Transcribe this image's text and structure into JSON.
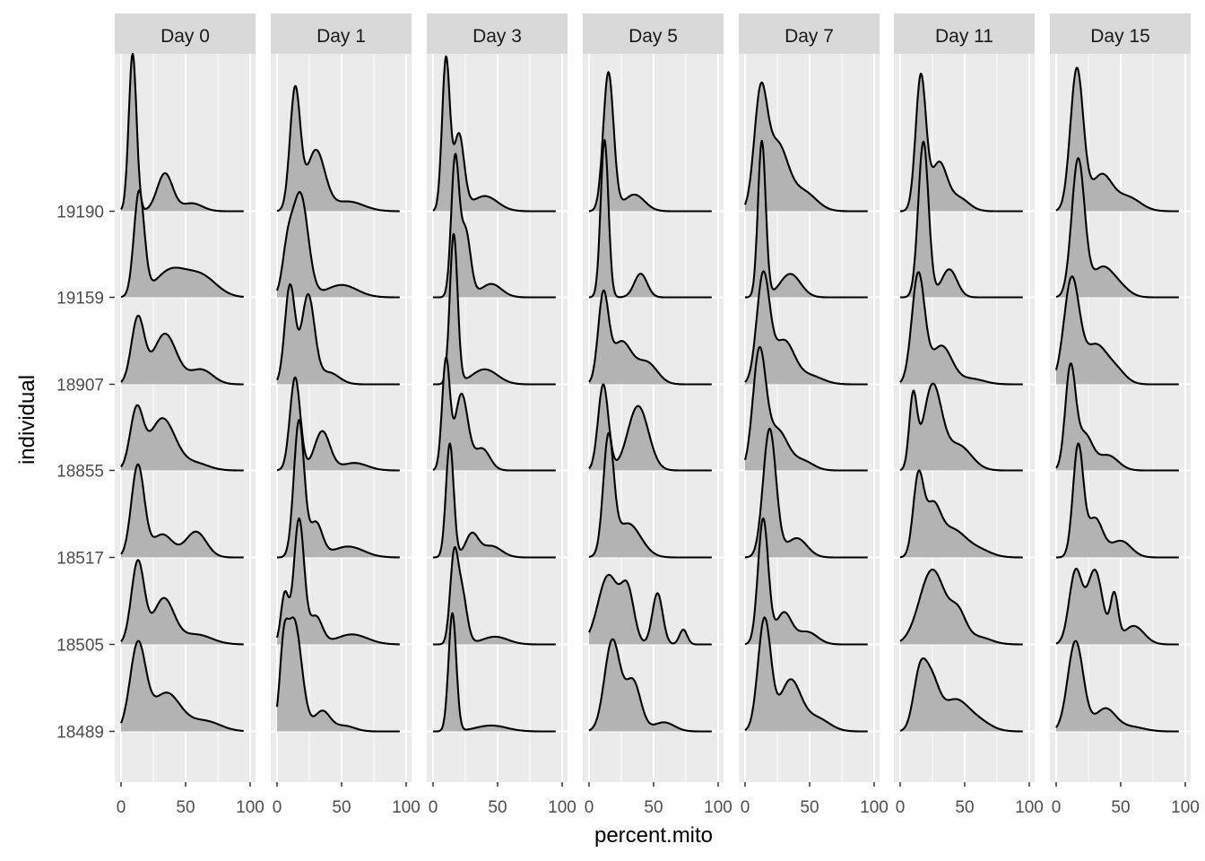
{
  "chart_data": {
    "type": "ridgeline",
    "xlabel": "percent.mito",
    "ylabel": "individual",
    "xlim": [
      0,
      100
    ],
    "x_ticks": [
      0,
      50,
      100
    ],
    "x_tick_labels": [
      "0",
      "50",
      "100"
    ],
    "fill_color": "#b3b3b3",
    "line_color": "#000000",
    "panel_background": "#ebebeb",
    "strip_background": "#d9d9d9",
    "grid": true,
    "panels": [
      "Day 0",
      "Day 1",
      "Day 3",
      "Day 5",
      "Day 7",
      "Day 11",
      "Day 15"
    ],
    "individuals": [
      "18489",
      "18505",
      "18517",
      "18855",
      "18907",
      "19159",
      "19190"
    ],
    "ridges": [
      [
        {
          "peaks": [
            [
              13,
              6,
              1.0
            ],
            [
              35,
              11,
              0.45
            ],
            [
              65,
              12,
              0.12
            ]
          ],
          "height": 1.04
        },
        {
          "peaks": [
            [
              13,
              5,
              1.0
            ],
            [
              33,
              8,
              0.55
            ],
            [
              58,
              12,
              0.12
            ]
          ],
          "height": 0.97
        },
        {
          "peaks": [
            [
              13,
              5,
              1.0
            ],
            [
              32,
              8,
              0.25
            ],
            [
              58,
              8,
              0.28
            ]
          ],
          "height": 1.07
        },
        {
          "peaks": [
            [
              12,
              5,
              1.0
            ],
            [
              32,
              10,
              0.9
            ],
            [
              58,
              10,
              0.12
            ]
          ],
          "height": 0.75
        },
        {
          "peaks": [
            [
              13,
              5,
              0.8
            ],
            [
              34,
              9,
              0.62
            ],
            [
              62,
              9,
              0.18
            ]
          ],
          "height": 0.79
        },
        {
          "peaks": [
            [
              14,
              4,
              1.0
            ],
            [
              38,
              12,
              0.25
            ],
            [
              62,
              12,
              0.2
            ]
          ],
          "height": 1.23
        },
        {
          "peaks": [
            [
              9,
              3,
              1.0
            ],
            [
              34,
              6,
              0.24
            ],
            [
              55,
              8,
              0.05
            ]
          ],
          "height": 1.81
        }
      ],
      [
        {
          "peaks": [
            [
              5,
              3,
              0.5
            ],
            [
              13,
              6,
              1.0
            ],
            [
              35,
              6,
              0.18
            ],
            [
              52,
              8,
              0.05
            ]
          ],
          "height": 1.31
        },
        {
          "peaks": [
            [
              6,
              3,
              0.4
            ],
            [
              17,
              4,
              1.0
            ],
            [
              30,
              5,
              0.22
            ],
            [
              58,
              12,
              0.08
            ]
          ],
          "height": 1.45
        },
        {
          "peaks": [
            [
              17,
              4,
              1.0
            ],
            [
              30,
              5,
              0.25
            ],
            [
              55,
              12,
              0.08
            ]
          ],
          "height": 1.58
        },
        {
          "peaks": [
            [
              14,
              4,
              1.0
            ],
            [
              35,
              6,
              0.42
            ],
            [
              60,
              10,
              0.08
            ]
          ],
          "height": 1.07
        },
        {
          "peaks": [
            [
              10,
              4,
              1.0
            ],
            [
              24,
              5,
              0.9
            ],
            [
              40,
              8,
              0.12
            ]
          ],
          "height": 1.15
        },
        {
          "peaks": [
            [
              8,
              4,
              0.4
            ],
            [
              18,
              6,
              1.0
            ],
            [
              50,
              12,
              0.12
            ]
          ],
          "height": 1.21
        },
        {
          "peaks": [
            [
              14,
              4,
              1.0
            ],
            [
              30,
              7,
              0.5
            ],
            [
              55,
              12,
              0.08
            ]
          ],
          "height": 1.44
        }
      ],
      [
        {
          "peaks": [
            [
              15,
              3,
              1.0
            ],
            [
              45,
              12,
              0.05
            ]
          ],
          "height": 1.36
        },
        {
          "peaks": [
            [
              16,
              3,
              1.0
            ],
            [
              22,
              4,
              0.7
            ],
            [
              48,
              10,
              0.1
            ]
          ],
          "height": 1.12
        },
        {
          "peaks": [
            [
              13,
              3,
              1.0
            ],
            [
              30,
              5,
              0.2
            ],
            [
              45,
              8,
              0.1
            ]
          ],
          "height": 1.31
        },
        {
          "peaks": [
            [
              10,
              3,
              1.0
            ],
            [
              22,
              5,
              0.7
            ],
            [
              38,
              6,
              0.2
            ]
          ],
          "height": 1.3
        },
        {
          "peaks": [
            [
              16,
              3,
              1.0
            ],
            [
              40,
              10,
              0.1
            ]
          ],
          "height": 1.73
        },
        {
          "peaks": [
            [
              17,
              3,
              1.0
            ],
            [
              25,
              4,
              0.5
            ],
            [
              45,
              8,
              0.1
            ]
          ],
          "height": 1.65
        },
        {
          "peaks": [
            [
              10,
              3,
              1.0
            ],
            [
              20,
              4,
              0.5
            ],
            [
              40,
              10,
              0.1
            ]
          ],
          "height": 1.78
        }
      ],
      [
        {
          "peaks": [
            [
              18,
              6,
              1.0
            ],
            [
              34,
              6,
              0.55
            ],
            [
              58,
              8,
              0.1
            ]
          ],
          "height": 1.06
        },
        {
          "peaks": [
            [
              15,
              8,
              0.7
            ],
            [
              30,
              5,
              0.5
            ],
            [
              53,
              4,
              0.52
            ],
            [
              73,
              3,
              0.15
            ]
          ],
          "height": 0.8
        },
        {
          "peaks": [
            [
              15,
              4,
              1.0
            ],
            [
              30,
              10,
              0.3
            ]
          ],
          "height": 1.43
        },
        {
          "peaks": [
            [
              11,
              4,
              1.0
            ],
            [
              38,
              8,
              0.75
            ]
          ],
          "height": 0.99
        },
        {
          "peaks": [
            [
              11,
              4,
              1.0
            ],
            [
              25,
              8,
              0.5
            ],
            [
              45,
              8,
              0.25
            ]
          ],
          "height": 1.08
        },
        {
          "peaks": [
            [
              12,
              3,
              1.0
            ],
            [
              40,
              5,
              0.15
            ]
          ],
          "height": 1.81
        },
        {
          "peaks": [
            [
              15,
              4,
              1.0
            ],
            [
              35,
              8,
              0.12
            ]
          ],
          "height": 1.6
        }
      ],
      [
        {
          "peaks": [
            [
              15,
              5,
              1.0
            ],
            [
              35,
              8,
              0.45
            ],
            [
              55,
              10,
              0.12
            ]
          ],
          "height": 1.31
        },
        {
          "peaks": [
            [
              14,
              4,
              1.0
            ],
            [
              30,
              6,
              0.25
            ],
            [
              48,
              8,
              0.1
            ]
          ],
          "height": 1.45
        },
        {
          "peaks": [
            [
              19,
              5,
              1.0
            ],
            [
              40,
              8,
              0.15
            ]
          ],
          "height": 1.48
        },
        {
          "peaks": [
            [
              11,
              5,
              1.0
            ],
            [
              25,
              8,
              0.35
            ],
            [
              45,
              8,
              0.08
            ]
          ],
          "height": 1.42
        },
        {
          "peaks": [
            [
              14,
              5,
              1.0
            ],
            [
              30,
              8,
              0.4
            ],
            [
              50,
              10,
              0.08
            ]
          ],
          "height": 1.3
        },
        {
          "peaks": [
            [
              13,
              3,
              1.0
            ],
            [
              35,
              8,
              0.15
            ]
          ],
          "height": 1.8
        },
        {
          "peaks": [
            [
              12,
              5,
              0.85
            ],
            [
              25,
              8,
              0.5
            ],
            [
              45,
              10,
              0.15
            ]
          ],
          "height": 1.48
        }
      ],
      [
        {
          "peaks": [
            [
              15,
              5,
              0.78
            ],
            [
              24,
              6,
              0.7
            ],
            [
              42,
              10,
              0.45
            ],
            [
              60,
              10,
              0.15
            ]
          ],
          "height": 0.84
        },
        {
          "peaks": [
            [
              25,
              10,
              1.0
            ],
            [
              45,
              6,
              0.35
            ],
            [
              60,
              10,
              0.1
            ]
          ],
          "height": 0.86
        },
        {
          "peaks": [
            [
              14,
              4,
              1.0
            ],
            [
              25,
              6,
              0.6
            ],
            [
              40,
              10,
              0.35
            ],
            [
              60,
              10,
              0.1
            ]
          ],
          "height": 1.0
        },
        {
          "peaks": [
            [
              10,
              3,
              0.85
            ],
            [
              25,
              7,
              1.0
            ],
            [
              45,
              10,
              0.3
            ]
          ],
          "height": 1.0
        },
        {
          "peaks": [
            [
              14,
              5,
              1.0
            ],
            [
              32,
              8,
              0.35
            ],
            [
              55,
              10,
              0.05
            ]
          ],
          "height": 1.29
        },
        {
          "peaks": [
            [
              18,
              4,
              1.0
            ],
            [
              38,
              6,
              0.18
            ]
          ],
          "height": 1.79
        },
        {
          "peaks": [
            [
              16,
              4,
              1.0
            ],
            [
              30,
              6,
              0.35
            ],
            [
              45,
              8,
              0.1
            ]
          ],
          "height": 1.58
        }
      ],
      [
        {
          "peaks": [
            [
              15,
              6,
              1.0
            ],
            [
              38,
              8,
              0.25
            ],
            [
              58,
              10,
              0.05
            ]
          ],
          "height": 1.04
        },
        {
          "peaks": [
            [
              15,
              5,
              0.78
            ],
            [
              30,
              6,
              0.8
            ],
            [
              45,
              3,
              0.5
            ],
            [
              60,
              8,
              0.2
            ]
          ],
          "height": 0.87
        },
        {
          "peaks": [
            [
              17,
              4,
              1.0
            ],
            [
              30,
              6,
              0.35
            ],
            [
              50,
              8,
              0.15
            ]
          ],
          "height": 1.31
        },
        {
          "peaks": [
            [
              11,
              4,
              1.0
            ],
            [
              22,
              6,
              0.35
            ],
            [
              40,
              8,
              0.15
            ]
          ],
          "height": 1.23
        },
        {
          "peaks": [
            [
              12,
              6,
              1.0
            ],
            [
              30,
              8,
              0.35
            ],
            [
              45,
              8,
              0.15
            ]
          ],
          "height": 1.24
        },
        {
          "peaks": [
            [
              17,
              5,
              1.0
            ],
            [
              35,
              8,
              0.2
            ],
            [
              48,
              8,
              0.08
            ]
          ],
          "height": 1.6
        },
        {
          "peaks": [
            [
              16,
              5,
              1.0
            ],
            [
              35,
              8,
              0.25
            ],
            [
              55,
              10,
              0.1
            ]
          ],
          "height": 1.65
        }
      ]
    ]
  }
}
